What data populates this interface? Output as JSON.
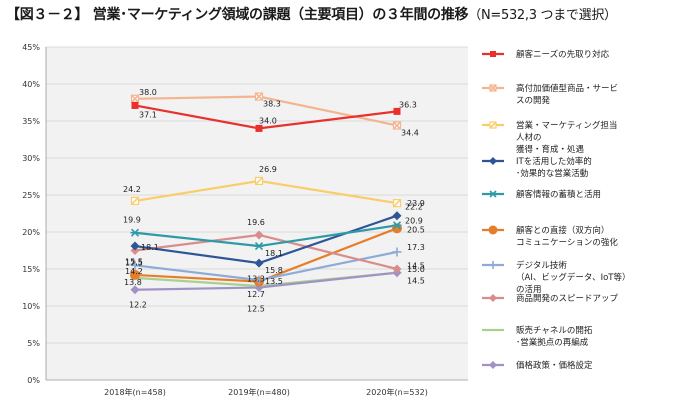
{
  "title": "【図３－２】 営業･マーケティング領域の課題（主要項目）の３年間の推移",
  "subtitle": "（N=532,3 つまで選択）",
  "chart_data": {
    "type": "line",
    "categories": [
      "2018年(n=458)",
      "2019年(n=480)",
      "2020年(n=532)"
    ],
    "yticks": [
      "0%",
      "5%",
      "10%",
      "15%",
      "20%",
      "25%",
      "30%",
      "35%",
      "40%",
      "45%"
    ],
    "ylim": [
      0,
      45
    ],
    "series": [
      {
        "name": "顧客ニーズの先取り対応",
        "legend_lines": [
          "顧客ニーズの先取り対応"
        ],
        "values": [
          37.1,
          34.0,
          36.3
        ],
        "labels": [
          "37.1",
          "34.0",
          "36.3"
        ],
        "color": "#e8302c",
        "marker": "square"
      },
      {
        "name": "高付加価値型商品・サービスの開発",
        "legend_lines": [
          "高付加価値型商品・サービ",
          "スの開発"
        ],
        "values": [
          38.0,
          38.3,
          34.4
        ],
        "labels": [
          "38.0",
          "38.3",
          "34.4"
        ],
        "color": "#f4b48f",
        "marker": "cross"
      },
      {
        "name": "営業・マーケティング担当人材の獲得・育成・処遇",
        "legend_lines": [
          "営業・マーケティング担当",
          "人材の",
          "獲得・育成・処遇"
        ],
        "values": [
          24.2,
          26.9,
          23.9
        ],
        "labels": [
          "24.2",
          "26.9",
          "23.9"
        ],
        "color": "#f9cd6a",
        "marker": "slash"
      },
      {
        "name": "ITを活用した効率的・効果的な営業活動",
        "legend_lines": [
          "ITを活用した効率的",
          "･効果的な営業活動"
        ],
        "values": [
          18.1,
          15.8,
          22.2
        ],
        "labels": [
          "18.1",
          "15.8",
          "22.2"
        ],
        "color": "#2f5597",
        "marker": "diamond"
      },
      {
        "name": "顧客情報の蓄積と活用",
        "legend_lines": [
          "顧客情報の蓄積と活用"
        ],
        "values": [
          19.9,
          18.1,
          20.9
        ],
        "labels": [
          "19.9",
          "18.1",
          "20.9"
        ],
        "color": "#2e9aa8",
        "marker": "asterisk"
      },
      {
        "name": "顧客との直接（双方向）コミュニケーションの強化",
        "legend_lines": [
          "顧客との直接（双方向）",
          "コミュニケーションの強化"
        ],
        "values": [
          14.2,
          13.3,
          20.5
        ],
        "labels": [
          "14.2",
          "13.3",
          "20.5"
        ],
        "color": "#e57e2b",
        "marker": "circle"
      },
      {
        "name": "デジタル技術（AI、ビッグデータ、IoT等）の活用",
        "legend_lines": [
          "デジタル技術",
          "（AI、ビッグデータ、IoT等）",
          "の活用"
        ],
        "values": [
          15.5,
          13.5,
          17.3
        ],
        "labels": [
          "15.5",
          "13.5",
          "17.3"
        ],
        "color": "#8eaad8",
        "marker": "plus"
      },
      {
        "name": "商品開発のスピードアップ",
        "legend_lines": [
          "商品開発のスピードアップ"
        ],
        "values": [
          17.5,
          19.6,
          15.0
        ],
        "labels": [
          "17.5",
          "19.6",
          "15.0"
        ],
        "color": "#d98c8c",
        "marker": "diamond"
      },
      {
        "name": "販売チャネルの開拓・営業拠点の再編成",
        "legend_lines": [
          "販売チャネルの開拓",
          "･営業拠点の再編成"
        ],
        "values": [
          13.8,
          12.7,
          14.5
        ],
        "labels": [
          "13.8",
          "12.7",
          "14.5"
        ],
        "color": "#a9d18e",
        "marker": "dash"
      },
      {
        "name": "価格政策・価格設定",
        "legend_lines": [
          "価格政策・価格設定"
        ],
        "values": [
          12.2,
          12.5,
          14.5
        ],
        "labels": [
          "12.2",
          "12.5",
          "14.5"
        ],
        "color": "#a192c6",
        "marker": "diamond"
      }
    ]
  }
}
